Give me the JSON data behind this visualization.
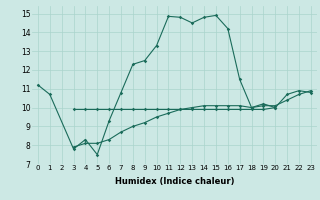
{
  "xlabel": "Humidex (Indice chaleur)",
  "background_color": "#cce8e4",
  "grid_color": "#aad4cc",
  "line_color": "#1a6b5a",
  "xlim": [
    -0.5,
    23.5
  ],
  "ylim": [
    7,
    15.4
  ],
  "xticks": [
    0,
    1,
    2,
    3,
    4,
    5,
    6,
    7,
    8,
    9,
    10,
    11,
    12,
    13,
    14,
    15,
    16,
    17,
    18,
    19,
    20,
    21,
    22,
    23
  ],
  "yticks": [
    7,
    8,
    9,
    10,
    11,
    12,
    13,
    14,
    15
  ],
  "series1_x": [
    0,
    1,
    3,
    4,
    5,
    6,
    7,
    8,
    9,
    10,
    11,
    12,
    13,
    14,
    15,
    16,
    17,
    18,
    19,
    20,
    21,
    22,
    23
  ],
  "series1_y": [
    11.2,
    10.7,
    7.8,
    8.3,
    7.5,
    9.3,
    10.8,
    12.3,
    12.5,
    13.3,
    14.85,
    14.8,
    14.5,
    14.8,
    14.9,
    14.2,
    11.5,
    10.0,
    10.2,
    10.0,
    10.7,
    10.9,
    10.8
  ],
  "series2_x": [
    3,
    4,
    5,
    6,
    7,
    8,
    9,
    10,
    11,
    12,
    13,
    14,
    15,
    16,
    17,
    18,
    19,
    20
  ],
  "series2_y": [
    9.9,
    9.9,
    9.9,
    9.9,
    9.9,
    9.9,
    9.9,
    9.9,
    9.9,
    9.9,
    9.9,
    9.9,
    9.9,
    9.9,
    9.9,
    9.9,
    9.9,
    10.0
  ],
  "series3_x": [
    3,
    4,
    5,
    6,
    7,
    8,
    9,
    10,
    11,
    12,
    13,
    14,
    15,
    16,
    17,
    18,
    19,
    20,
    21,
    22,
    23
  ],
  "series3_y": [
    7.9,
    8.1,
    8.1,
    8.3,
    8.7,
    9.0,
    9.2,
    9.5,
    9.7,
    9.9,
    10.0,
    10.1,
    10.1,
    10.1,
    10.1,
    10.0,
    10.1,
    10.1,
    10.4,
    10.7,
    10.9
  ]
}
